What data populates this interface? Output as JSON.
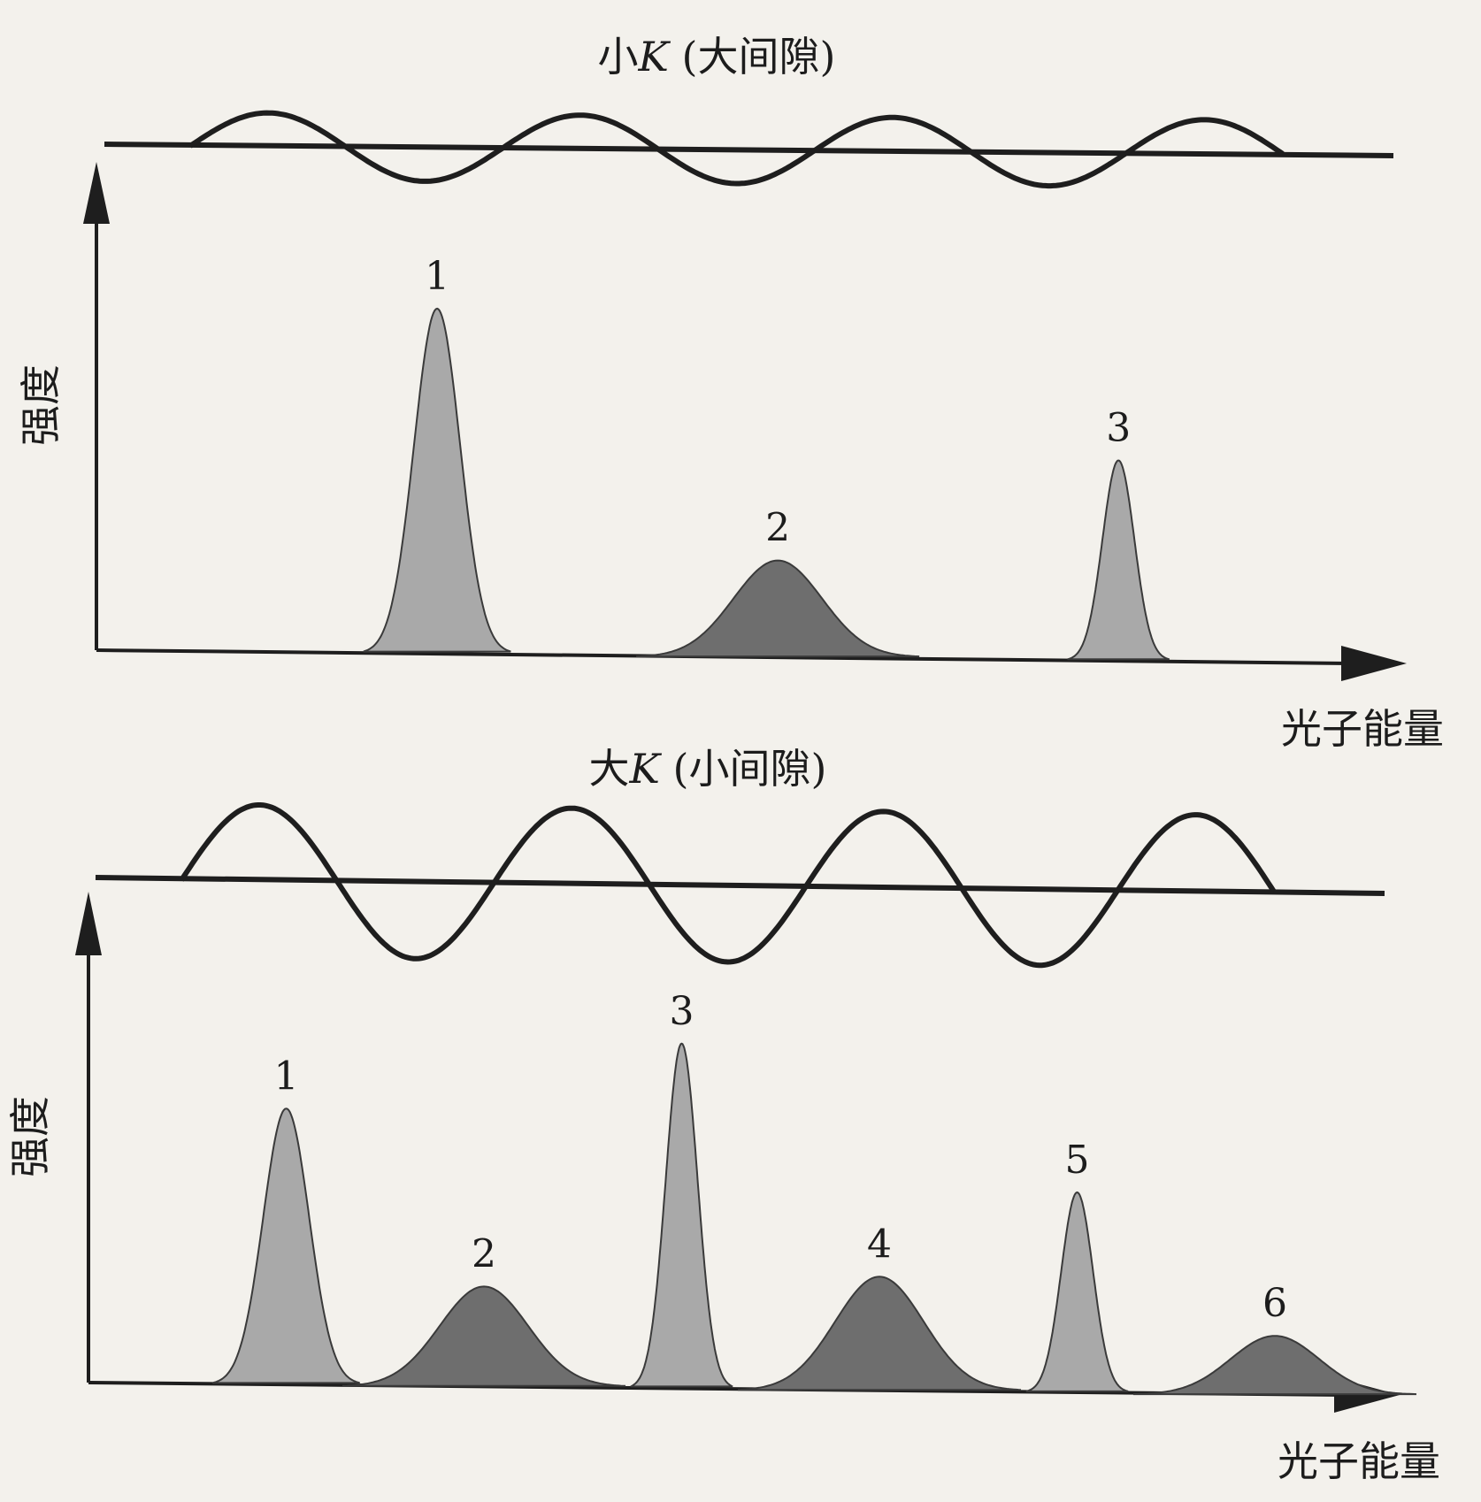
{
  "panels": [
    {
      "id": "small-k",
      "title": "小K (大间隙)",
      "title_italic_letter": "K",
      "title_prefix": "小",
      "title_suffix": " (大间隙)",
      "ylabel": "强度",
      "xlabel": "光子能量",
      "oscillation": "small",
      "peaks": [
        {
          "label": "1",
          "energy": 0.26,
          "height": 1.0,
          "width": "narrow",
          "shade": "light"
        },
        {
          "label": "2",
          "energy": 0.52,
          "height": 0.28,
          "width": "broad",
          "shade": "dark"
        },
        {
          "label": "3",
          "energy": 0.78,
          "height": 0.58,
          "width": "very-narrow",
          "shade": "light"
        }
      ]
    },
    {
      "id": "large-k",
      "title": "大K (小间隙)",
      "title_italic_letter": "K",
      "title_prefix": "大",
      "title_suffix": " (小间隙)",
      "ylabel": "强度",
      "xlabel": "光子能量",
      "oscillation": "large",
      "peaks": [
        {
          "label": "1",
          "energy": 0.15,
          "height": 0.8,
          "width": "narrow",
          "shade": "light"
        },
        {
          "label": "2",
          "energy": 0.3,
          "height": 0.29,
          "width": "broad",
          "shade": "dark"
        },
        {
          "label": "3",
          "energy": 0.45,
          "height": 1.0,
          "width": "very-narrow",
          "shade": "light"
        },
        {
          "label": "4",
          "energy": 0.6,
          "height": 0.33,
          "width": "broad",
          "shade": "dark"
        },
        {
          "label": "5",
          "energy": 0.75,
          "height": 0.58,
          "width": "very-narrow",
          "shade": "light"
        },
        {
          "label": "6",
          "energy": 0.9,
          "height": 0.17,
          "width": "broad",
          "shade": "dark"
        }
      ]
    }
  ],
  "colors": {
    "light_peak": "#a9a9a9",
    "dark_peak": "#6e6e6e",
    "ink": "#1e1e1e",
    "background": "#f3f1ec"
  }
}
